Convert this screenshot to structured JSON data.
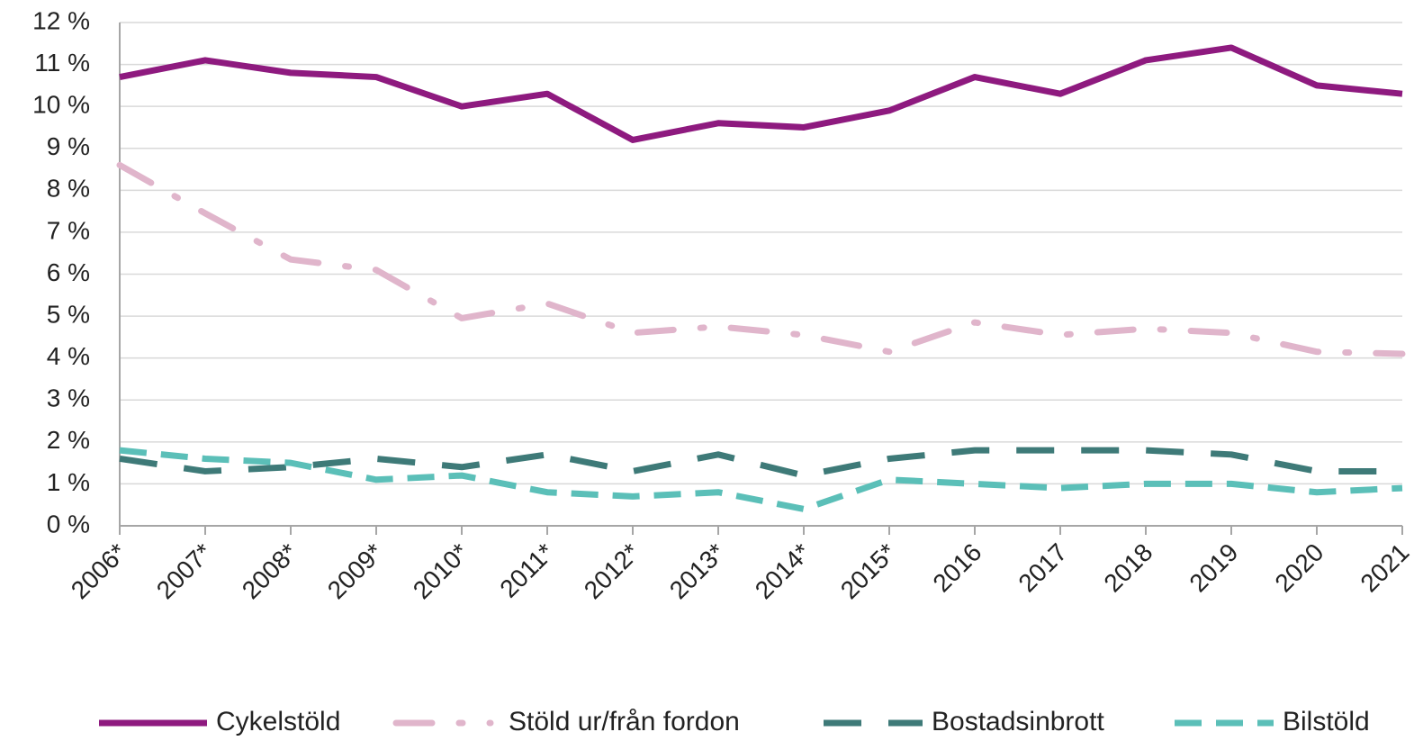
{
  "chart_data": {
    "type": "line",
    "categories": [
      "2006*",
      "2007*",
      "2008*",
      "2009*",
      "2010*",
      "2011*",
      "2012*",
      "2013*",
      "2014*",
      "2015*",
      "2016",
      "2017",
      "2018",
      "2019",
      "2020",
      "2021"
    ],
    "series": [
      {
        "name": "Cykelstöld",
        "color": "#8e1a7f",
        "dash": "solid",
        "values": [
          10.7,
          11.1,
          10.8,
          10.7,
          10.0,
          10.3,
          9.2,
          9.6,
          9.5,
          9.9,
          10.7,
          10.3,
          11.1,
          11.4,
          10.5,
          10.3
        ]
      },
      {
        "name": "Stöld ur/från fordon",
        "color": "#e0b5cb",
        "dash": "dashdot",
        "values": [
          8.6,
          7.45,
          6.35,
          6.1,
          4.95,
          5.3,
          4.6,
          4.75,
          4.55,
          4.15,
          4.85,
          4.55,
          4.7,
          4.6,
          4.15,
          4.1
        ]
      },
      {
        "name": "Bostadsinbrott",
        "color": "#3e7a78",
        "dash": "longdash",
        "values": [
          1.6,
          1.3,
          1.4,
          1.6,
          1.4,
          1.7,
          1.3,
          1.7,
          1.2,
          1.6,
          1.8,
          1.8,
          1.8,
          1.7,
          1.3,
          1.3
        ]
      },
      {
        "name": "Bilstöld",
        "color": "#5bbfb8",
        "dash": "dash",
        "values": [
          1.8,
          1.6,
          1.5,
          1.1,
          1.2,
          0.8,
          0.7,
          0.8,
          0.4,
          1.1,
          1.0,
          0.9,
          1.0,
          1.0,
          0.8,
          0.9
        ]
      }
    ],
    "ylim": [
      0,
      12
    ],
    "yticks": [
      {
        "value": 0,
        "label": "0 %"
      },
      {
        "value": 1,
        "label": "1 %"
      },
      {
        "value": 2,
        "label": "2 %"
      },
      {
        "value": 3,
        "label": "3 %"
      },
      {
        "value": 4,
        "label": "4 %"
      },
      {
        "value": 5,
        "label": "5 %"
      },
      {
        "value": 6,
        "label": "6 %"
      },
      {
        "value": 7,
        "label": "7 %"
      },
      {
        "value": 8,
        "label": "8 %"
      },
      {
        "value": 9,
        "label": "9 %"
      },
      {
        "value": 10,
        "label": "10 %"
      },
      {
        "value": 11,
        "label": "11 %"
      },
      {
        "value": 12,
        "label": "12 %"
      }
    ],
    "grid": true,
    "legend": "bottom"
  }
}
